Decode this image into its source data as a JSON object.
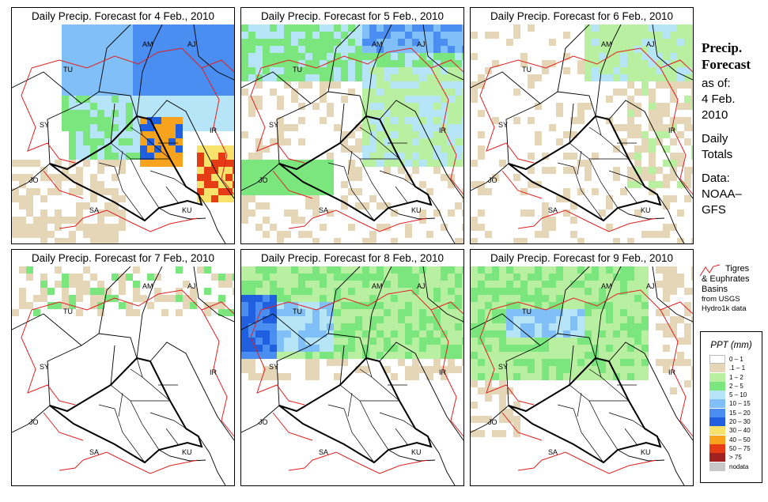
{
  "panels": [
    {
      "title": "Daily Precip. Forecast for  4 Feb., 2010"
    },
    {
      "title": "Daily Precip. Forecast for  5 Feb., 2010"
    },
    {
      "title": "Daily Precip. Forecast for  6 Feb., 2010"
    },
    {
      "title": "Daily Precip. Forecast for  7 Feb., 2010"
    },
    {
      "title": "Daily Precip. Forecast for  8 Feb., 2010"
    },
    {
      "title": "Daily Precip. Forecast for  9 Feb., 2010"
    }
  ],
  "map_labels": {
    "am": "AM",
    "aj": "AJ",
    "tu": "TU",
    "sy": "SY",
    "ir": "IR",
    "jo": "JO",
    "sa": "SA",
    "ku": "KU"
  },
  "side": {
    "heading1": "Precip.",
    "heading2": "Forecast",
    "asof": "as of:",
    "date1": "4 Feb.",
    "date2": "2010",
    "daily1": "Daily",
    "daily2": "Totals",
    "data1": "Data:",
    "data2": "NOAA–",
    "data3": "GFS"
  },
  "basin_note": {
    "line1": "Tigres",
    "line2": "& Euphrates",
    "line3": "Basins",
    "line4": "from USGS",
    "line5": "Hydro1k data"
  },
  "legend": {
    "title": "PPT (mm)",
    "rows": [
      {
        "label": "0 – 1",
        "color": "#ffffff"
      },
      {
        "label": ".1 – 1",
        "color": "#e6d6b8"
      },
      {
        "label": "1 – 2",
        "color": "#b9efa1"
      },
      {
        "label": "2 – 5",
        "color": "#7be67d"
      },
      {
        "label": "5 – 10",
        "color": "#b6e5f7"
      },
      {
        "label": "10 – 15",
        "color": "#80bff7"
      },
      {
        "label": "15 – 20",
        "color": "#4a8ef2"
      },
      {
        "label": "20 – 30",
        "color": "#2060e0"
      },
      {
        "label": "30 – 40",
        "color": "#f7e26b"
      },
      {
        "label": "40 – 50",
        "color": "#f7a31e"
      },
      {
        "label": "50 – 75",
        "color": "#e63c16"
      },
      {
        "label": "> 75",
        "color": "#a12020"
      },
      {
        "label": "nodata",
        "color": "#c8c8c8"
      }
    ]
  },
  "colors": {
    "basin_line": "#e02020",
    "border_line": "#000000"
  }
}
